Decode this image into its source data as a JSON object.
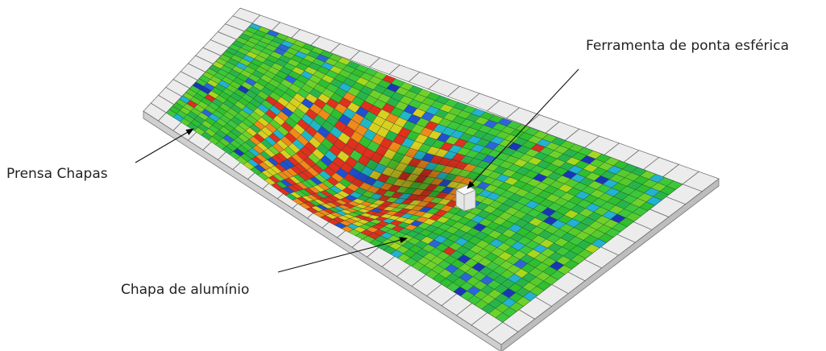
{
  "annotations": [
    {
      "label": "Ferramenta de ponta esférica"
    },
    {
      "label": "Prensa Chapas"
    },
    {
      "label": "Chapa de alumínio"
    }
  ]
}
